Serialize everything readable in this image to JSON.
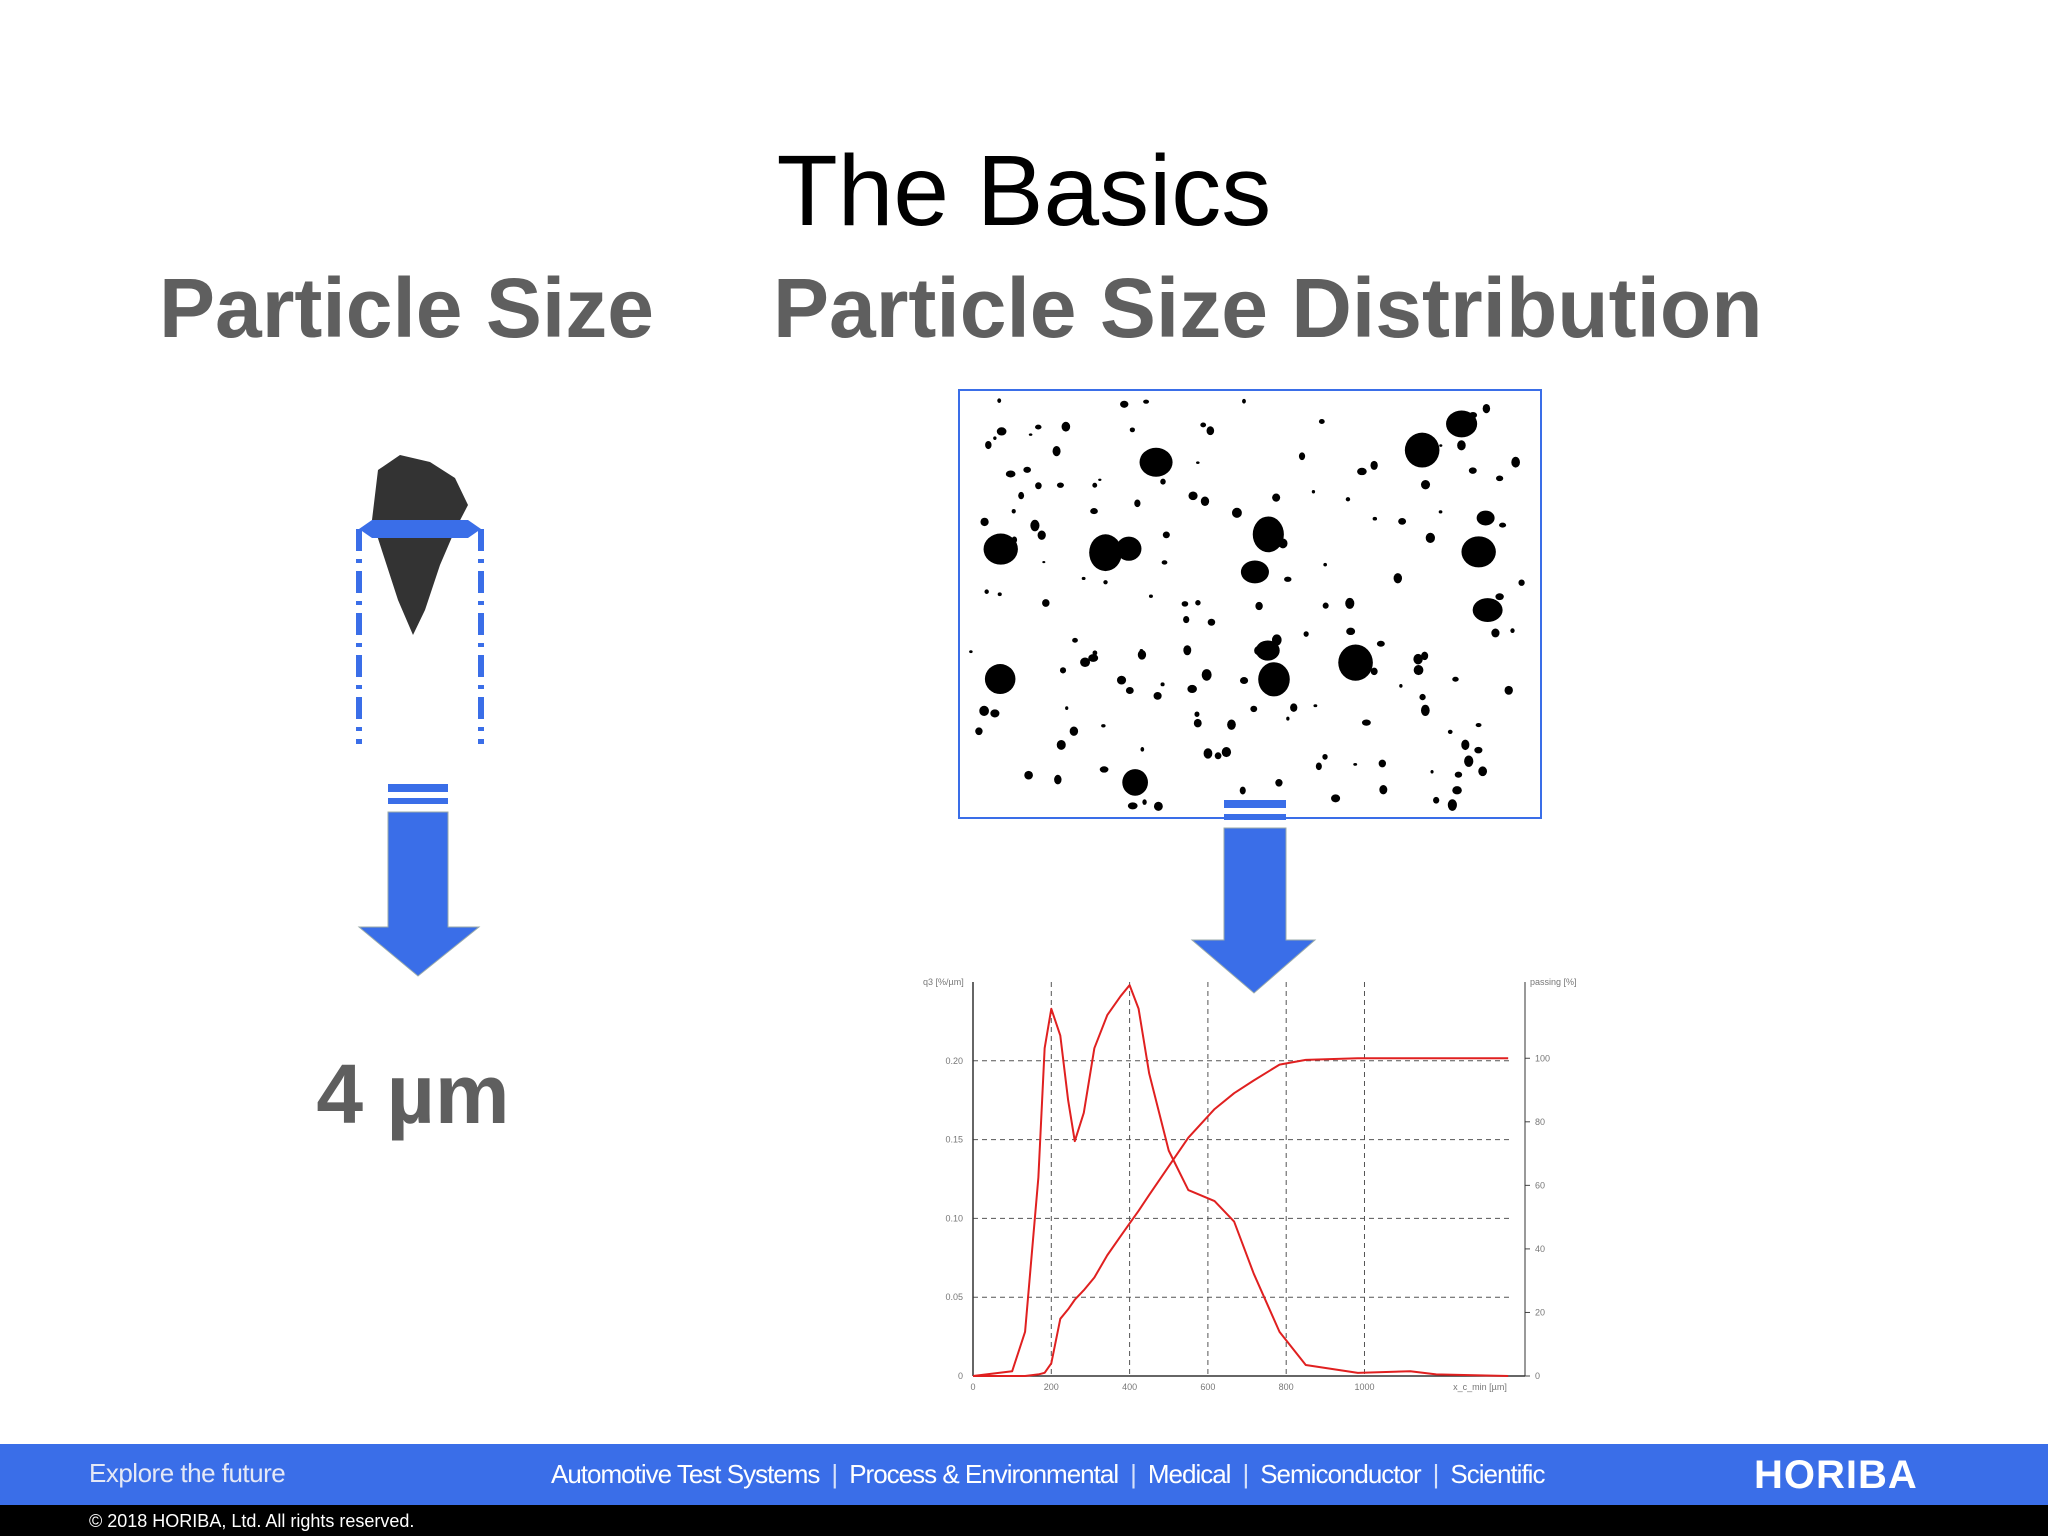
{
  "header": {
    "title": "The Basics"
  },
  "left": {
    "heading": "Particle Size",
    "result": "4 µm"
  },
  "right": {
    "heading": "Particle Size Distribution"
  },
  "chart_data": {
    "type": "line",
    "ylabel": "q3 [%/µm]",
    "y2label": "passing [%]",
    "xlabel": "x_c_min [µm]",
    "x": [
      0,
      100,
      133,
      167,
      183,
      200,
      223,
      243,
      260,
      283,
      310,
      343,
      377,
      400,
      423,
      450,
      500,
      550,
      617,
      667,
      717,
      783,
      850,
      983,
      1117,
      1183,
      1367
    ],
    "series": [
      {
        "name": "q3",
        "color": "#e02020",
        "values": [
          0,
          0.003,
          0.028,
          0.126,
          0.208,
          0.233,
          0.216,
          0.175,
          0.149,
          0.167,
          0.208,
          0.229,
          0.241,
          0.248,
          0.233,
          0.192,
          0.143,
          0.118,
          0.111,
          0.098,
          0.065,
          0.028,
          0.007,
          0.002,
          0.003,
          0.001,
          0
        ]
      },
      {
        "name": "passing",
        "color": "#e02020",
        "axis": "y2",
        "values": [
          0,
          0,
          0,
          0.5,
          1,
          4,
          18,
          21,
          24,
          27,
          31,
          38,
          44,
          48,
          52,
          57,
          66,
          75,
          84,
          89,
          93,
          98,
          99.5,
          100,
          100,
          100,
          100
        ]
      }
    ],
    "xlim": [
      0,
      1410
    ],
    "xticks": [
      0,
      200,
      400,
      600,
      800,
      1000
    ],
    "ylim": [
      0,
      0.25
    ],
    "yticks": [
      0,
      0.05,
      {
        "value": 0.1,
        "label": "0.10"
      },
      0.15,
      {
        "value": 0.2,
        "label": "0.20"
      }
    ],
    "y2lim": [
      0,
      124
    ],
    "y2ticks": [
      0,
      20,
      40,
      60,
      80,
      100
    ],
    "grid": true
  },
  "footer": {
    "tagline": "Explore the future",
    "links": [
      "Automotive Test Systems",
      "Process & Environmental",
      "Medical",
      "Semiconductor",
      "Scientific"
    ],
    "brand": "HORIBA",
    "copyright": "© 2018 HORIBA, Ltd. All rights reserved."
  }
}
